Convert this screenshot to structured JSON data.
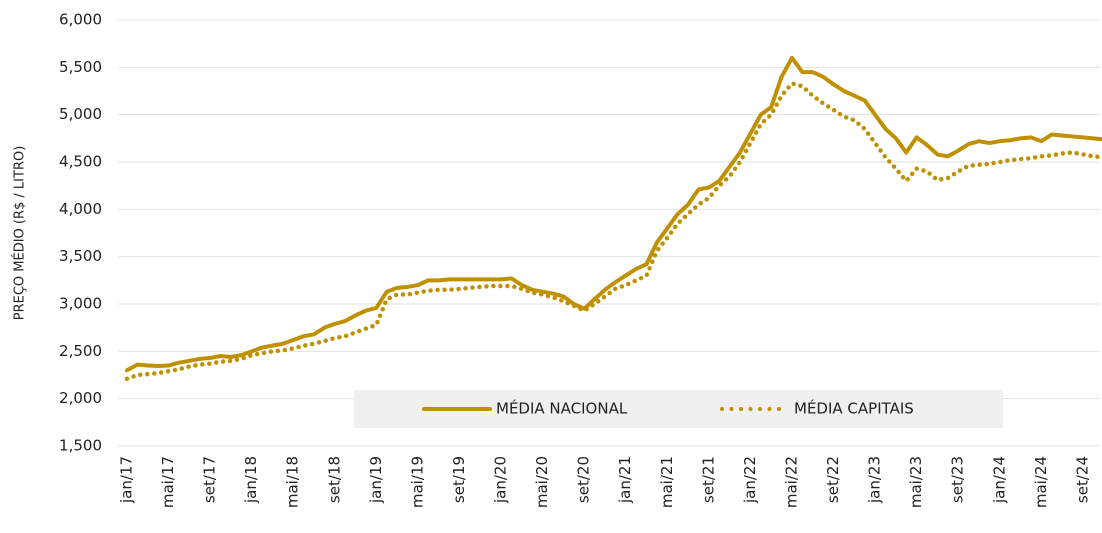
{
  "chart_data": {
    "type": "line",
    "y_label": "PREÇO MÉDIO (R$ / LITRO)",
    "categories": [
      "jan/17",
      null,
      null,
      null,
      "mai/17",
      null,
      null,
      null,
      "set/17",
      null,
      null,
      null,
      "jan/18",
      null,
      null,
      null,
      "mai/18",
      null,
      null,
      null,
      "set/18",
      null,
      null,
      null,
      "jan/19",
      null,
      null,
      null,
      "mai/19",
      null,
      null,
      null,
      "set/19",
      null,
      null,
      null,
      "jan/20",
      null,
      null,
      null,
      "mai/20",
      null,
      null,
      null,
      "set/20",
      null,
      null,
      null,
      "jan/21",
      null,
      null,
      null,
      "mai/21",
      null,
      null,
      null,
      "set/21",
      null,
      null,
      null,
      "jan/22",
      null,
      null,
      null,
      "mai/22",
      null,
      null,
      null,
      "set/22",
      null,
      null,
      null,
      "jan/23",
      null,
      null,
      null,
      "mai/23",
      null,
      null,
      null,
      "set/23",
      null,
      null,
      null,
      "jan/24",
      null,
      null,
      null,
      "mai/24",
      null,
      null,
      null,
      "set/24",
      null,
      null
    ],
    "series": [
      {
        "name": "MÉDIA NACIONAL",
        "color": "#bf9000",
        "style": "solid",
        "values": [
          2300,
          2360,
          2350,
          2345,
          2350,
          2380,
          2400,
          2420,
          2430,
          2450,
          2440,
          2460,
          2500,
          2540,
          2560,
          2580,
          2620,
          2660,
          2680,
          2750,
          2790,
          2820,
          2880,
          2930,
          2960,
          3130,
          3170,
          3180,
          3200,
          3250,
          3250,
          3260,
          3260,
          3260,
          3260,
          3260,
          3260,
          3270,
          3200,
          3150,
          3130,
          3110,
          3080,
          3000,
          2950,
          3050,
          3150,
          3230,
          3300,
          3370,
          3420,
          3650,
          3800,
          3950,
          4050,
          4210,
          4230,
          4300,
          4450,
          4600,
          4800,
          5000,
          5080,
          5400,
          5600,
          5450,
          5450,
          5400,
          5320,
          5250,
          5200,
          5150,
          5000,
          4850,
          4750,
          4600,
          4760,
          4680,
          4580,
          4560,
          4620,
          4690,
          4720,
          4700,
          4720,
          4730,
          4750,
          4760,
          4720,
          4790,
          4780,
          4770,
          4760,
          4750,
          4740
        ]
      },
      {
        "name": "MÉDIA CAPITAIS",
        "color": "#bf9000",
        "style": "dotted",
        "values": [
          2210,
          2250,
          2260,
          2270,
          2290,
          2310,
          2340,
          2360,
          2370,
          2390,
          2400,
          2420,
          2460,
          2480,
          2500,
          2510,
          2530,
          2560,
          2580,
          2610,
          2640,
          2660,
          2700,
          2740,
          2780,
          3050,
          3100,
          3100,
          3120,
          3140,
          3150,
          3150,
          3160,
          3170,
          3180,
          3190,
          3190,
          3190,
          3160,
          3120,
          3100,
          3070,
          3030,
          2980,
          2930,
          3000,
          3080,
          3160,
          3200,
          3250,
          3300,
          3560,
          3700,
          3850,
          3950,
          4050,
          4120,
          4250,
          4350,
          4500,
          4700,
          4900,
          5000,
          5200,
          5330,
          5300,
          5200,
          5120,
          5050,
          4980,
          4940,
          4850,
          4700,
          4550,
          4430,
          4300,
          4430,
          4400,
          4310,
          4330,
          4400,
          4460,
          4470,
          4480,
          4500,
          4520,
          4530,
          4540,
          4560,
          4570,
          4590,
          4600,
          4580,
          4560,
          4550
        ]
      }
    ],
    "ylim": [
      1500,
      6000
    ],
    "yticks": [
      {
        "value": 1500,
        "label": "1,500"
      },
      {
        "value": 2000,
        "label": "2,000"
      },
      {
        "value": 2500,
        "label": "2,500"
      },
      {
        "value": 3000,
        "label": "3,000"
      },
      {
        "value": 3500,
        "label": "3,500"
      },
      {
        "value": 4000,
        "label": "4,000"
      },
      {
        "value": 4500,
        "label": "4,500"
      },
      {
        "value": 5000,
        "label": "5,000"
      },
      {
        "value": 5500,
        "label": "5,500"
      },
      {
        "value": 6000,
        "label": "6,000"
      }
    ],
    "grid": true,
    "legend": "bottom"
  }
}
